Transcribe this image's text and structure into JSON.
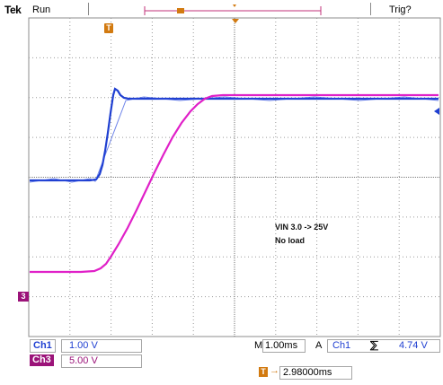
{
  "header": {
    "brand": "Tek",
    "run_state": "Run",
    "trigger_status": "Trig?"
  },
  "markers": {
    "trigger_glyph": "T",
    "ch3_label": "3"
  },
  "annotation": {
    "line1": "VIN 3.0 -> 25V",
    "line2": "No load"
  },
  "channels": [
    {
      "tag": "Ch1",
      "scale": "1.00 V",
      "color": "#1f3fd1"
    },
    {
      "tag": "Ch3",
      "scale": "5.00 V",
      "color": "#e020c8"
    }
  ],
  "timebase": {
    "prefix": "M",
    "value": "1.00ms",
    "trigger_source_prefix": "A",
    "trigger_channel": "Ch1",
    "slope_symbol": "⅀",
    "trigger_level": "4.74 V"
  },
  "delay": {
    "arrow": "→",
    "value": "2.98000ms"
  },
  "colors": {
    "grid": "#9a9a9a",
    "ch1_trace": "#1f3fd1",
    "ch3_trace": "#e020c8",
    "trigger_accent": "#d27a10",
    "ch3_tag_bg": "#9b1379",
    "ch1_tag_bg": "#2342c8"
  },
  "icons": {
    "trigger_marker": "trigger-position-marker-icon",
    "ch3_ground_marker": "channel3-ground-marker-icon",
    "trigger_level": "trigger-level-arrow-icon"
  }
}
